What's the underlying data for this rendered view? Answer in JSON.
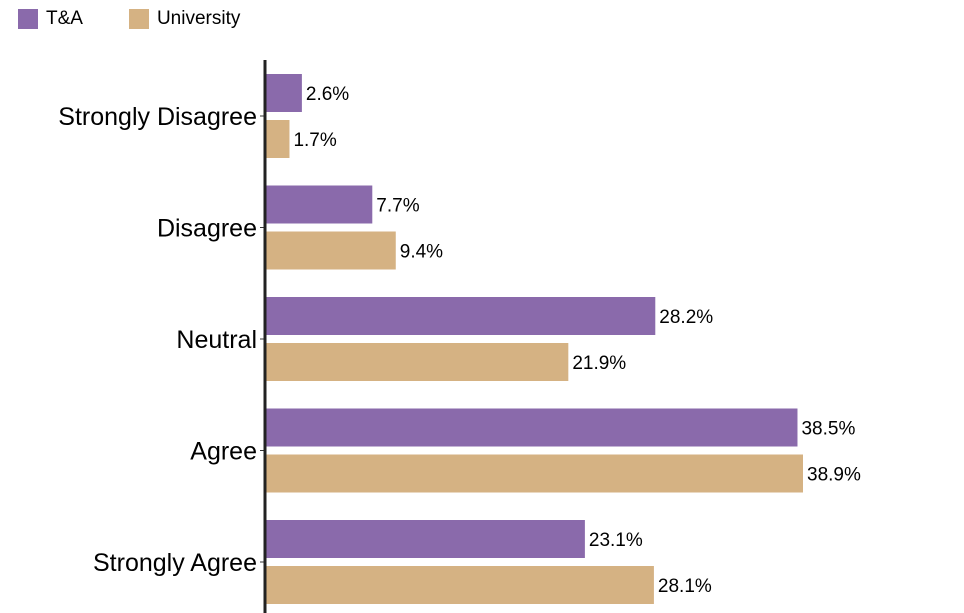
{
  "chart_data": {
    "type": "bar",
    "orientation": "horizontal",
    "categories": [
      "Strongly Disagree",
      "Disagree",
      "Neutral",
      "Agree",
      "Strongly Agree"
    ],
    "series": [
      {
        "name": "T&A",
        "color": "#8a6aab",
        "values": [
          2.6,
          7.7,
          28.2,
          38.5,
          23.1
        ]
      },
      {
        "name": "University",
        "color": "#d5b283",
        "values": [
          1.7,
          9.4,
          21.9,
          38.9,
          28.1
        ]
      }
    ],
    "value_labels": [
      [
        "2.6%",
        "7.7%",
        "28.2%",
        "38.5%",
        "23.1%"
      ],
      [
        "1.7%",
        "9.4%",
        "21.9%",
        "38.9%",
        "28.1%"
      ]
    ],
    "xlim": [
      0,
      38.9
    ],
    "legend_position": "top-left",
    "grid": false
  }
}
